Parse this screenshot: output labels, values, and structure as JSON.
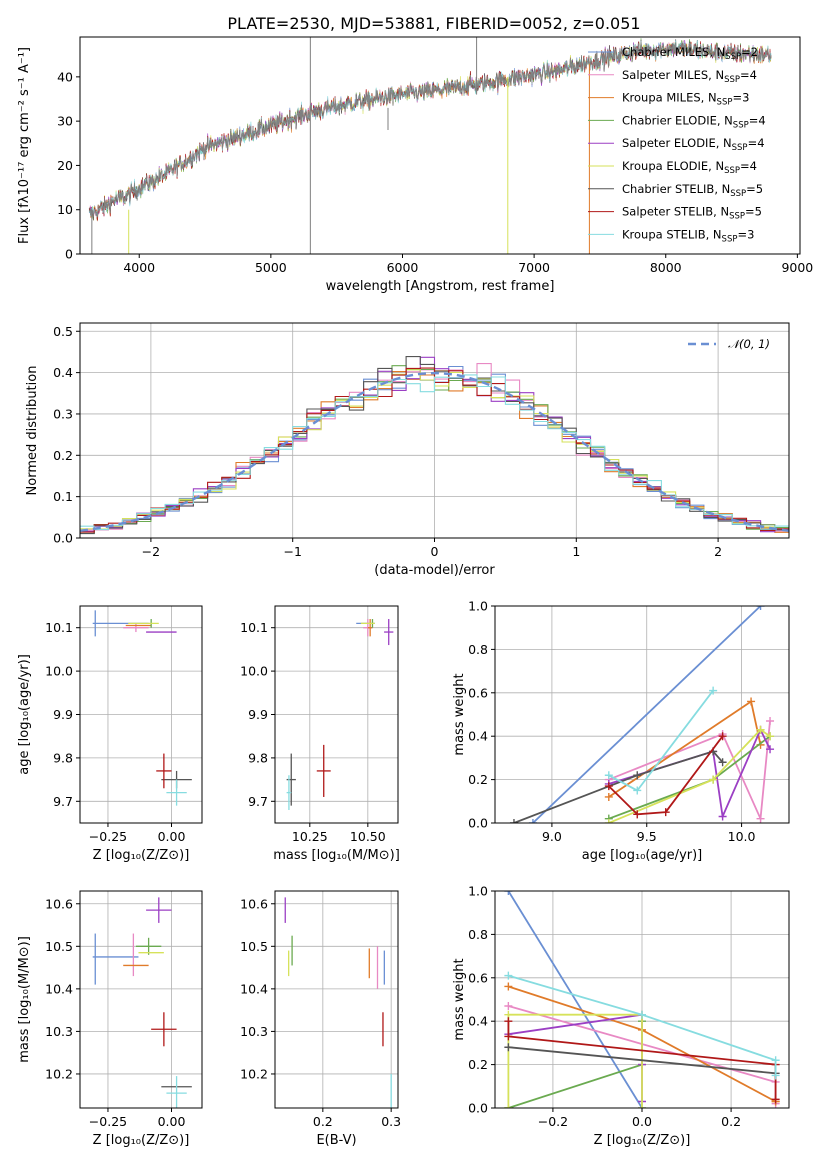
{
  "figure": {
    "title": "PLATE=2530, MJD=53881, FIBERID=0052, z=0.051"
  },
  "colors": {
    "chabrier_miles": "#6a8fd3",
    "salpeter_miles": "#e889c4",
    "kroupa_miles": "#e07b2a",
    "chabrier_elodie": "#6aaa50",
    "salpeter_elodie": "#9b3fc4",
    "kroupa_elodie": "#d6e25a",
    "chabrier_stelib": "#555555",
    "salpeter_stelib": "#b01818",
    "kroupa_stelib": "#86dce0",
    "data_gray": "#7f7f7f"
  },
  "chart_data": [
    {
      "id": "spectrum",
      "type": "line",
      "xlabel": "wavelength [Angstrom, rest frame]",
      "ylabel": "Flux [fλ10⁻¹⁷ erg cm⁻² s⁻¹ A⁻¹]",
      "xlim": [
        3550,
        9020
      ],
      "ylim": [
        0,
        49
      ],
      "xticks": [
        4000,
        5000,
        6000,
        7000,
        8000,
        9000
      ],
      "yticks": [
        0,
        10,
        20,
        30,
        40
      ],
      "grid": false,
      "legend_position": "top-right",
      "legend": [
        {
          "label": "Chabrier MILES, N",
          "sub": "SSP",
          "suffix": "=2",
          "color": "#6a8fd3"
        },
        {
          "label": "Salpeter MILES, N",
          "sub": "SSP",
          "suffix": "=4",
          "color": "#e889c4"
        },
        {
          "label": "Kroupa MILES, N",
          "sub": "SSP",
          "suffix": "=3",
          "color": "#e07b2a"
        },
        {
          "label": "Chabrier ELODIE, N",
          "sub": "SSP",
          "suffix": "=4",
          "color": "#6aaa50"
        },
        {
          "label": "Salpeter ELODIE, N",
          "sub": "SSP",
          "suffix": "=4",
          "color": "#9b3fc4"
        },
        {
          "label": "Kroupa ELODIE, N",
          "sub": "SSP",
          "suffix": "=4",
          "color": "#d6e25a"
        },
        {
          "label": "Chabrier STELIB, N",
          "sub": "SSP",
          "suffix": "=5",
          "color": "#555555"
        },
        {
          "label": "Salpeter STELIB, N",
          "sub": "SSP",
          "suffix": "=5",
          "color": "#b01818"
        },
        {
          "label": "Kroupa STELIB, N",
          "sub": "SSP",
          "suffix": "=3",
          "color": "#86dce0"
        }
      ],
      "continuum": {
        "x": [
          3620,
          3700,
          3800,
          3900,
          4000,
          4200,
          4500,
          4800,
          5000,
          5300,
          5600,
          6000,
          6300,
          6600,
          6900,
          7200,
          7500,
          7800,
          8100,
          8400,
          8800
        ],
        "y": [
          9,
          10,
          12,
          13,
          15,
          18,
          24,
          27,
          29,
          32,
          34,
          36,
          37,
          38.5,
          40,
          41.5,
          44,
          46,
          46.5,
          45.5,
          45
        ]
      },
      "features": [
        {
          "x": 5300,
          "y0": 0,
          "y1": 49,
          "color": "#7f7f7f"
        },
        {
          "x": 5890,
          "y0": 28,
          "y1": 33,
          "color": "#7f7f7f"
        },
        {
          "x": 6563,
          "y0": 36,
          "y1": 49,
          "color": "#7f7f7f"
        },
        {
          "x": 3920,
          "y0": 0,
          "y1": 10,
          "color": "#d6e25a"
        },
        {
          "x": 6800,
          "y0": 0,
          "y1": 40,
          "color": "#d6e25a"
        },
        {
          "x": 7420,
          "y0": 0,
          "y1": 43,
          "color": "#e07b2a"
        },
        {
          "x": 3640,
          "y0": 0,
          "y1": 10,
          "color": "#7f7f7f"
        }
      ]
    },
    {
      "id": "residuals",
      "type": "histogram",
      "xlabel": "(data-model)/error",
      "ylabel": "Normed distribution",
      "xlim": [
        -2.5,
        2.5
      ],
      "ylim": [
        0,
        0.52
      ],
      "xticks": [
        -2,
        -1,
        0,
        1,
        2
      ],
      "yticks": [
        0.0,
        0.1,
        0.2,
        0.3,
        0.4,
        0.5
      ],
      "grid": true,
      "legend_position": "top-right",
      "legend": [
        {
          "label": "𝒩(0, 1)",
          "color": "#6a8fd3",
          "style": "dashed"
        }
      ],
      "bin_width": 0.1
    },
    {
      "id": "age_vs_z",
      "type": "errorbar",
      "xlabel": "Z [log₁₀(Z/Z⊙)]",
      "ylabel": "age  [log₁₀(age/yr)]",
      "xlim": [
        -0.36,
        0.12
      ],
      "ylim": [
        9.65,
        10.15
      ],
      "xticks": [
        -0.25,
        0.0
      ],
      "yticks": [
        9.7,
        9.8,
        9.9,
        10.0,
        10.1
      ],
      "xticklabels": [
        "−0.25",
        "0.00"
      ],
      "grid": true,
      "points": [
        {
          "x": -0.3,
          "y": 10.11,
          "xerr": 0.0,
          "yerr": 0.03,
          "color": "#6a8fd3"
        },
        {
          "x": -0.2,
          "y": 10.11,
          "xerr": 0.11,
          "yerr": 0.0,
          "color": "#6a8fd3"
        },
        {
          "x": -0.14,
          "y": 10.1,
          "xerr": 0.05,
          "yerr": 0.01,
          "color": "#e889c4"
        },
        {
          "x": -0.13,
          "y": 10.105,
          "xerr": 0.05,
          "yerr": 0.0,
          "color": "#e07b2a"
        },
        {
          "x": -0.08,
          "y": 10.11,
          "xerr": 0.0,
          "yerr": 0.01,
          "color": "#6aaa50"
        },
        {
          "x": -0.04,
          "y": 10.09,
          "xerr": 0.06,
          "yerr": 0.0,
          "color": "#9b3fc4"
        },
        {
          "x": -0.11,
          "y": 10.11,
          "xerr": 0.06,
          "yerr": 0.0,
          "color": "#d6e25a"
        },
        {
          "x": 0.02,
          "y": 9.75,
          "xerr": 0.06,
          "yerr": 0.02,
          "color": "#555555"
        },
        {
          "x": -0.03,
          "y": 9.77,
          "xerr": 0.03,
          "yerr": 0.04,
          "color": "#b01818"
        },
        {
          "x": 0.02,
          "y": 9.72,
          "xerr": 0.04,
          "yerr": 0.03,
          "color": "#86dce0"
        }
      ]
    },
    {
      "id": "age_vs_mass",
      "type": "errorbar",
      "xlabel": "mass [log₁₀(M/M⊙)]",
      "ylabel": "",
      "xlim": [
        10.1,
        10.63
      ],
      "ylim": [
        9.65,
        10.15
      ],
      "xticks": [
        10.25,
        10.5
      ],
      "yticks": [
        9.7,
        9.8,
        9.9,
        10.0,
        10.1
      ],
      "xticklabels": [
        "10.25",
        "10.50"
      ],
      "grid": true,
      "points": [
        {
          "x": 10.49,
          "y": 10.11,
          "xerr": 0.04,
          "yerr": 0.0,
          "color": "#6a8fd3"
        },
        {
          "x": 10.5,
          "y": 10.1,
          "xerr": 0.02,
          "yerr": 0.02,
          "color": "#e889c4"
        },
        {
          "x": 10.51,
          "y": 10.1,
          "xerr": 0.01,
          "yerr": 0.02,
          "color": "#e07b2a"
        },
        {
          "x": 10.52,
          "y": 10.11,
          "xerr": 0.0,
          "yerr": 0.01,
          "color": "#6aaa50"
        },
        {
          "x": 10.59,
          "y": 10.09,
          "xerr": 0.02,
          "yerr": 0.03,
          "color": "#9b3fc4"
        },
        {
          "x": 10.5,
          "y": 10.11,
          "xerr": 0.03,
          "yerr": 0.0,
          "color": "#d6e25a"
        },
        {
          "x": 10.17,
          "y": 9.75,
          "xerr": 0.02,
          "yerr": 0.06,
          "color": "#555555"
        },
        {
          "x": 10.31,
          "y": 9.77,
          "xerr": 0.03,
          "yerr": 0.06,
          "color": "#b01818"
        },
        {
          "x": 10.16,
          "y": 9.72,
          "xerr": 0.01,
          "yerr": 0.04,
          "color": "#86dce0"
        }
      ]
    },
    {
      "id": "mass_weight_vs_age",
      "type": "line",
      "xlabel": "age  [log₁₀(age/yr)]",
      "ylabel": "mass weight",
      "xlim": [
        8.7,
        10.25
      ],
      "ylim": [
        0,
        1.0
      ],
      "xticks": [
        9.0,
        9.5,
        10.0
      ],
      "yticks": [
        0.0,
        0.2,
        0.4,
        0.6,
        0.8,
        1.0
      ],
      "grid": true,
      "series": [
        {
          "color": "#6a8fd3",
          "x": [
            8.9,
            10.1
          ],
          "y": [
            0.0,
            1.0
          ]
        },
        {
          "color": "#e889c4",
          "x": [
            9.3,
            9.9,
            10.1,
            10.15
          ],
          "y": [
            0.2,
            0.41,
            0.02,
            0.47
          ]
        },
        {
          "color": "#e07b2a",
          "x": [
            9.3,
            10.05,
            10.1
          ],
          "y": [
            0.12,
            0.56,
            0.36
          ]
        },
        {
          "color": "#6aaa50",
          "x": [
            9.3,
            9.85,
            10.15
          ],
          "y": [
            0.02,
            0.2,
            0.4
          ]
        },
        {
          "color": "#9b3fc4",
          "x": [
            9.3,
            9.85,
            9.9,
            10.1,
            10.15
          ],
          "y": [
            0.18,
            0.33,
            0.03,
            0.43,
            0.34
          ]
        },
        {
          "color": "#d6e25a",
          "x": [
            9.3,
            9.85,
            10.1,
            10.15
          ],
          "y": [
            0.0,
            0.2,
            0.43,
            0.4
          ]
        },
        {
          "color": "#555555",
          "x": [
            8.8,
            9.45,
            9.85,
            9.9
          ],
          "y": [
            0.0,
            0.22,
            0.33,
            0.28
          ]
        },
        {
          "color": "#b01818",
          "x": [
            9.3,
            9.45,
            9.6,
            9.9
          ],
          "y": [
            0.17,
            0.04,
            0.05,
            0.4
          ]
        },
        {
          "color": "#86dce0",
          "x": [
            9.3,
            9.45,
            9.85
          ],
          "y": [
            0.22,
            0.15,
            0.61
          ]
        }
      ]
    },
    {
      "id": "mass_vs_z",
      "type": "errorbar",
      "xlabel": "Z [log₁₀(Z/Z⊙)]",
      "ylabel": "mass [log₁₀(M/M⊙)]",
      "xlim": [
        -0.36,
        0.12
      ],
      "ylim": [
        10.12,
        10.63
      ],
      "xticks": [
        -0.25,
        0.0
      ],
      "yticks": [
        10.2,
        10.3,
        10.4,
        10.5,
        10.6
      ],
      "xticklabels": [
        "−0.25",
        "0.00"
      ],
      "grid": true,
      "points": [
        {
          "x": -0.3,
          "y": 10.47,
          "xerr": 0.0,
          "yerr": 0.06,
          "color": "#6a8fd3"
        },
        {
          "x": -0.22,
          "y": 10.475,
          "xerr": 0.09,
          "yerr": 0.0,
          "color": "#6a8fd3"
        },
        {
          "x": -0.15,
          "y": 10.48,
          "xerr": 0.0,
          "yerr": 0.05,
          "color": "#e889c4"
        },
        {
          "x": -0.14,
          "y": 10.455,
          "xerr": 0.05,
          "yerr": 0.0,
          "color": "#e07b2a"
        },
        {
          "x": -0.09,
          "y": 10.5,
          "xerr": 0.05,
          "yerr": 0.02,
          "color": "#6aaa50"
        },
        {
          "x": -0.05,
          "y": 10.585,
          "xerr": 0.05,
          "yerr": 0.03,
          "color": "#9b3fc4"
        },
        {
          "x": -0.08,
          "y": 10.485,
          "xerr": 0.05,
          "yerr": 0.0,
          "color": "#d6e25a"
        },
        {
          "x": 0.02,
          "y": 10.17,
          "xerr": 0.06,
          "yerr": 0.0,
          "color": "#555555"
        },
        {
          "x": -0.03,
          "y": 10.305,
          "xerr": 0.05,
          "yerr": 0.04,
          "color": "#b01818"
        },
        {
          "x": 0.02,
          "y": 10.155,
          "xerr": 0.04,
          "yerr": 0.04,
          "color": "#86dce0"
        }
      ]
    },
    {
      "id": "mass_vs_ebv",
      "type": "errorbar",
      "xlabel": "E(B-V)",
      "ylabel": "",
      "xlim": [
        0.13,
        0.31
      ],
      "ylim": [
        10.12,
        10.63
      ],
      "xticks": [
        0.2,
        0.3
      ],
      "yticks": [
        10.2,
        10.3,
        10.4,
        10.5,
        10.6
      ],
      "xticklabels": [
        "0.2",
        "0.3"
      ],
      "grid": true,
      "points": [
        {
          "x": 0.145,
          "y": 10.585,
          "xerr": 0.0,
          "yerr": 0.03,
          "color": "#9b3fc4"
        },
        {
          "x": 0.155,
          "y": 10.49,
          "xerr": 0.0,
          "yerr": 0.035,
          "color": "#6aaa50"
        },
        {
          "x": 0.15,
          "y": 10.46,
          "xerr": 0.0,
          "yerr": 0.03,
          "color": "#d6e25a"
        },
        {
          "x": 0.268,
          "y": 10.46,
          "xerr": 0.0,
          "yerr": 0.035,
          "color": "#e07b2a"
        },
        {
          "x": 0.28,
          "y": 10.45,
          "xerr": 0.0,
          "yerr": 0.05,
          "color": "#e889c4"
        },
        {
          "x": 0.29,
          "y": 10.45,
          "xerr": 0.0,
          "yerr": 0.04,
          "color": "#6a8fd3"
        },
        {
          "x": 0.288,
          "y": 10.305,
          "xerr": 0.0,
          "yerr": 0.04,
          "color": "#b01818"
        },
        {
          "x": 0.3,
          "y": 10.16,
          "xerr": 0.0,
          "yerr": 0.04,
          "color": "#86dce0"
        }
      ]
    },
    {
      "id": "mass_weight_vs_z",
      "type": "line",
      "xlabel": "Z [log₁₀(Z/Z⊙)]",
      "ylabel": "mass weight",
      "xlim": [
        -0.33,
        0.33
      ],
      "ylim": [
        0,
        1.0
      ],
      "xticks": [
        -0.2,
        0.0,
        0.2
      ],
      "yticks": [
        0.0,
        0.2,
        0.4,
        0.6,
        0.8,
        1.0
      ],
      "xticklabels": [
        "−0.2",
        "0.0",
        "0.2"
      ],
      "grid": true,
      "series": [
        {
          "color": "#6a8fd3",
          "x": [
            -0.3,
            0.0
          ],
          "y": [
            1.0,
            0.0
          ]
        },
        {
          "color": "#e889c4",
          "x": [
            -0.3,
            0.3,
            0.3
          ],
          "y": [
            0.47,
            0.12,
            0.02
          ]
        },
        {
          "color": "#e07b2a",
          "x": [
            -0.3,
            0.0,
            0.3,
            0.3
          ],
          "y": [
            0.56,
            0.36,
            0.03,
            0.03
          ]
        },
        {
          "color": "#6aaa50",
          "x": [
            -0.3,
            0.0,
            0.0
          ],
          "y": [
            0.0,
            0.2,
            0.4
          ]
        },
        {
          "color": "#9b3fc4",
          "x": [
            -0.3,
            0.0,
            0.0,
            0.0
          ],
          "y": [
            0.34,
            0.43,
            0.03,
            0.2
          ]
        },
        {
          "color": "#d6e25a",
          "x": [
            -0.3,
            -0.3,
            0.0,
            0.0
          ],
          "y": [
            0.0,
            0.43,
            0.43,
            0.0
          ]
        },
        {
          "color": "#555555",
          "x": [
            -0.3,
            0.3
          ],
          "y": [
            0.28,
            0.16
          ]
        },
        {
          "color": "#b01818",
          "x": [
            -0.3,
            -0.3,
            0.3,
            0.3
          ],
          "y": [
            0.4,
            0.33,
            0.2,
            0.04
          ]
        },
        {
          "color": "#86dce0",
          "x": [
            -0.3,
            0.0,
            0.3,
            0.3
          ],
          "y": [
            0.61,
            0.43,
            0.22,
            0.15
          ]
        }
      ]
    }
  ]
}
